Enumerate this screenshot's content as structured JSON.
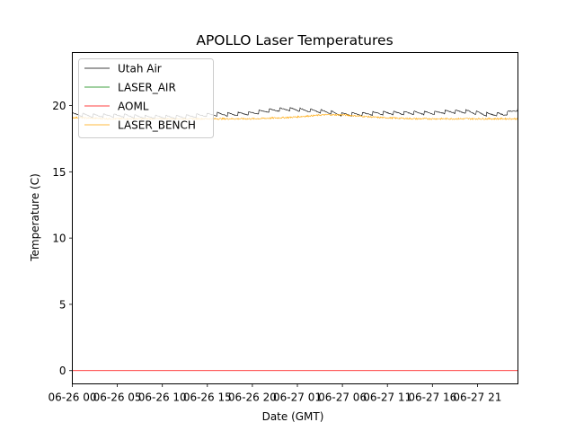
{
  "chart_data": {
    "type": "line",
    "title": "APOLLO Laser Temperatures",
    "xlabel": "Date (GMT)",
    "ylabel": "Temperature (C)",
    "xlim": [
      0,
      49.5
    ],
    "ylim": [
      -1,
      24
    ],
    "yticks": [
      0,
      5,
      10,
      15,
      20
    ],
    "ytick_labels": [
      "0",
      "5",
      "10",
      "15",
      "20"
    ],
    "xticks": [
      0,
      5,
      10,
      15,
      20,
      25,
      30,
      35,
      40,
      45
    ],
    "xtick_labels": [
      "06-26 00",
      "06-26 05",
      "06-26 10",
      "06-26 15",
      "06-26 20",
      "06-27 01",
      "06-27 06",
      "06-27 11",
      "06-27 16",
      "06-27 21"
    ],
    "x_units": "hours since 06-26 00:00 GMT",
    "legend_position": "upper-left",
    "series": [
      {
        "name": "Utah Air",
        "color": "#000000",
        "x": [
          0,
          2,
          4,
          6,
          8,
          10,
          12,
          14,
          16,
          18,
          20,
          22,
          24,
          26,
          28,
          30,
          32,
          34,
          36,
          38,
          40,
          42,
          44,
          46,
          48,
          49.5
        ],
        "y": [
          19.3,
          19.2,
          19.2,
          19.2,
          19.1,
          19.1,
          19.1,
          19.2,
          19.3,
          19.3,
          19.4,
          19.6,
          19.7,
          19.6,
          19.5,
          19.3,
          19.3,
          19.4,
          19.4,
          19.4,
          19.4,
          19.5,
          19.5,
          19.3,
          19.3,
          19.7
        ]
      },
      {
        "name": "LASER_AIR",
        "color": "#008000",
        "x": [
          0,
          49.5
        ],
        "y": [
          null,
          null
        ]
      },
      {
        "name": "AOML",
        "color": "#ff0000",
        "x": [
          0,
          49.5
        ],
        "y": [
          0,
          0
        ]
      },
      {
        "name": "LASER_BENCH",
        "color": "#ffa500",
        "x": [
          0,
          4,
          8,
          12,
          16,
          20,
          24,
          28,
          30,
          34,
          38,
          42,
          46,
          49.5
        ],
        "y": [
          19.1,
          19.0,
          19.0,
          19.0,
          19.0,
          19.0,
          19.1,
          19.3,
          19.3,
          19.1,
          19.0,
          19.0,
          19.0,
          19.0
        ]
      }
    ]
  }
}
